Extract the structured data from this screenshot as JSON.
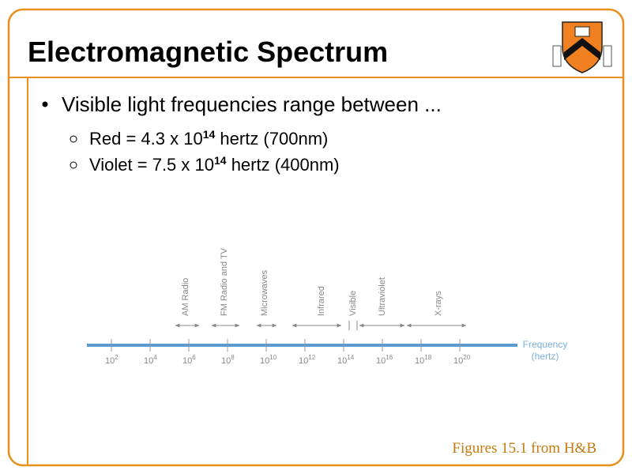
{
  "header": {
    "title": "Electromagnetic Spectrum"
  },
  "bullets": [
    {
      "text": "Visible light frequencies range between ...",
      "sub": [
        {
          "text": "Red = 4.3 x 10",
          "sup": "14",
          "rest": " hertz (700nm)"
        },
        {
          "text": "Violet = 7.5 x 10",
          "sup": "14",
          "rest": " hertz (400nm)"
        }
      ]
    }
  ],
  "figure": {
    "ticks": [
      {
        "base": "10",
        "exp": "2"
      },
      {
        "base": "10",
        "exp": "4"
      },
      {
        "base": "10",
        "exp": "6"
      },
      {
        "base": "10",
        "exp": "8"
      },
      {
        "base": "10",
        "exp": "10"
      },
      {
        "base": "10",
        "exp": "12"
      },
      {
        "base": "10",
        "exp": "14"
      },
      {
        "base": "10",
        "exp": "16"
      },
      {
        "base": "10",
        "exp": "18"
      },
      {
        "base": "10",
        "exp": "20"
      }
    ],
    "bands": [
      "AM Radio",
      "FM Radio and TV",
      "Microwaves",
      "Infrared",
      "Visible",
      "Ultraviolet",
      "X-rays"
    ],
    "axis_label": [
      "Frequency",
      "(hertz)"
    ]
  },
  "caption": "Figures 15.1 from H&B"
}
